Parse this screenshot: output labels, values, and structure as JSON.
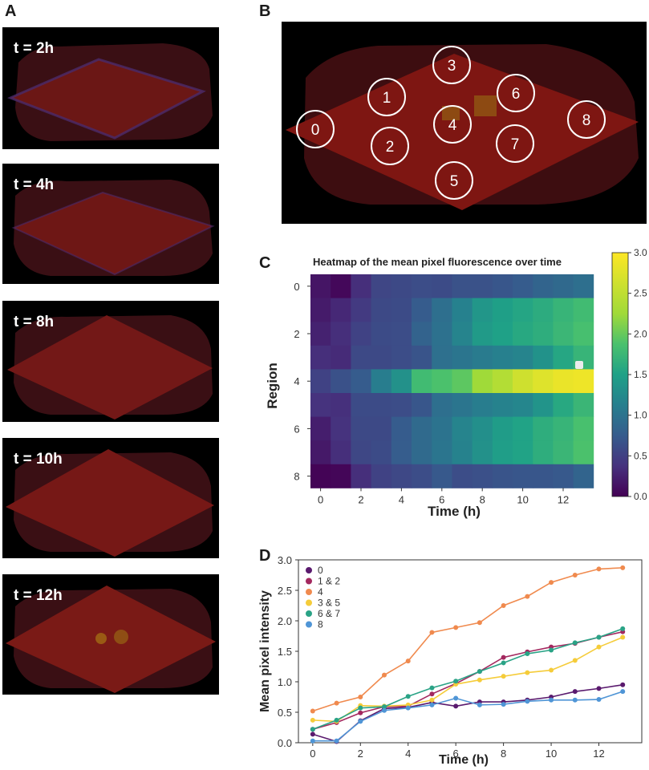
{
  "panels": {
    "a": "A",
    "b": "B",
    "c": "C",
    "d": "D"
  },
  "panel_a": {
    "timepoints": [
      "t = 2h",
      "t = 4h",
      "t = 8h",
      "t = 10h",
      "t = 12h"
    ]
  },
  "panel_b": {
    "regions": [
      "0",
      "1",
      "2",
      "3",
      "4",
      "5",
      "6",
      "7",
      "8"
    ]
  },
  "chart_data": [
    {
      "type": "heatmap",
      "title": "Heatmap of the mean pixel fluorescence over time",
      "xlabel": "Time (h)",
      "ylabel": "Region",
      "x": [
        0,
        1,
        2,
        3,
        4,
        5,
        6,
        7,
        8,
        9,
        10,
        11,
        12,
        13
      ],
      "x_ticks": [
        "0",
        "2",
        "4",
        "6",
        "8",
        "10",
        "12"
      ],
      "y": [
        0,
        1,
        2,
        3,
        4,
        5,
        6,
        7,
        8
      ],
      "y_ticks": [
        "0",
        "2",
        "4",
        "6",
        "8"
      ],
      "colorbar_ticks": [
        "0.0",
        "0.5",
        "1.0",
        "1.5",
        "2.0",
        "2.5",
        "3.0"
      ],
      "vmin": 0.0,
      "vmax": 3.0,
      "colormap": "viridis",
      "values": [
        [
          0.15,
          0.05,
          0.35,
          0.55,
          0.58,
          0.62,
          0.6,
          0.66,
          0.66,
          0.7,
          0.75,
          0.84,
          0.89,
          0.95
        ],
        [
          0.2,
          0.3,
          0.45,
          0.58,
          0.6,
          0.75,
          0.95,
          1.15,
          1.38,
          1.48,
          1.55,
          1.62,
          1.72,
          1.8
        ],
        [
          0.25,
          0.35,
          0.52,
          0.6,
          0.62,
          0.82,
          0.98,
          1.18,
          1.42,
          1.5,
          1.58,
          1.64,
          1.75,
          1.85
        ],
        [
          0.35,
          0.32,
          0.58,
          0.58,
          0.62,
          0.68,
          0.96,
          1.02,
          1.08,
          1.14,
          1.18,
          1.34,
          1.56,
          1.72
        ],
        [
          0.52,
          0.65,
          0.75,
          1.1,
          1.32,
          1.8,
          1.88,
          1.96,
          2.25,
          2.4,
          2.62,
          2.75,
          2.85,
          2.88
        ],
        [
          0.38,
          0.36,
          0.6,
          0.6,
          0.62,
          0.7,
          0.95,
          1.02,
          1.1,
          1.16,
          1.2,
          1.36,
          1.58,
          1.74
        ],
        [
          0.22,
          0.38,
          0.58,
          0.58,
          0.75,
          0.9,
          1.0,
          1.18,
          1.3,
          1.45,
          1.52,
          1.64,
          1.72,
          1.86
        ],
        [
          0.18,
          0.35,
          0.56,
          0.6,
          0.76,
          0.9,
          1.02,
          1.16,
          1.32,
          1.47,
          1.52,
          1.64,
          1.74,
          1.88
        ],
        [
          0.02,
          0.04,
          0.35,
          0.52,
          0.57,
          0.62,
          0.72,
          0.62,
          0.64,
          0.68,
          0.7,
          0.7,
          0.72,
          0.84
        ]
      ]
    },
    {
      "type": "line",
      "xlabel": "Time (h)",
      "ylabel": "Mean pixel intensity",
      "xlim": [
        -0.6,
        13.8
      ],
      "ylim": [
        0,
        3.0
      ],
      "x_ticks": [
        "0",
        "2",
        "4",
        "6",
        "8",
        "10",
        "12"
      ],
      "y_ticks": [
        "0.0",
        "0.5",
        "1.0",
        "1.5",
        "2.0",
        "2.5",
        "3.0"
      ],
      "legend_position": "top-left",
      "x": [
        0,
        1,
        2,
        3,
        4,
        5,
        6,
        7,
        8,
        9,
        10,
        11,
        12,
        13
      ],
      "series": [
        {
          "name": "0",
          "color": "#5a1a6e",
          "values": [
            0.14,
            0.02,
            0.36,
            0.56,
            0.58,
            0.66,
            0.6,
            0.67,
            0.67,
            0.7,
            0.75,
            0.84,
            0.89,
            0.95
          ]
        },
        {
          "name": "1 & 2",
          "color": "#a3285f",
          "values": [
            0.22,
            0.33,
            0.49,
            0.59,
            0.6,
            0.8,
            0.97,
            1.17,
            1.4,
            1.49,
            1.57,
            1.63,
            1.73,
            1.82
          ]
        },
        {
          "name": "4",
          "color": "#f08a4e",
          "values": [
            0.52,
            0.65,
            0.75,
            1.11,
            1.34,
            1.81,
            1.89,
            1.97,
            2.25,
            2.4,
            2.63,
            2.75,
            2.85,
            2.87
          ]
        },
        {
          "name": "3 & 5",
          "color": "#f5cc3a",
          "values": [
            0.37,
            0.35,
            0.61,
            0.6,
            0.62,
            0.7,
            0.96,
            1.03,
            1.09,
            1.15,
            1.19,
            1.35,
            1.57,
            1.73
          ]
        },
        {
          "name": "6 & 7",
          "color": "#2aa386",
          "values": [
            0.22,
            0.37,
            0.57,
            0.59,
            0.76,
            0.9,
            1.01,
            1.17,
            1.31,
            1.46,
            1.52,
            1.64,
            1.73,
            1.87
          ]
        },
        {
          "name": "8",
          "color": "#4f95d6",
          "values": [
            0.03,
            0.03,
            0.35,
            0.53,
            0.57,
            0.62,
            0.73,
            0.62,
            0.63,
            0.68,
            0.7,
            0.7,
            0.71,
            0.84
          ]
        }
      ]
    }
  ]
}
